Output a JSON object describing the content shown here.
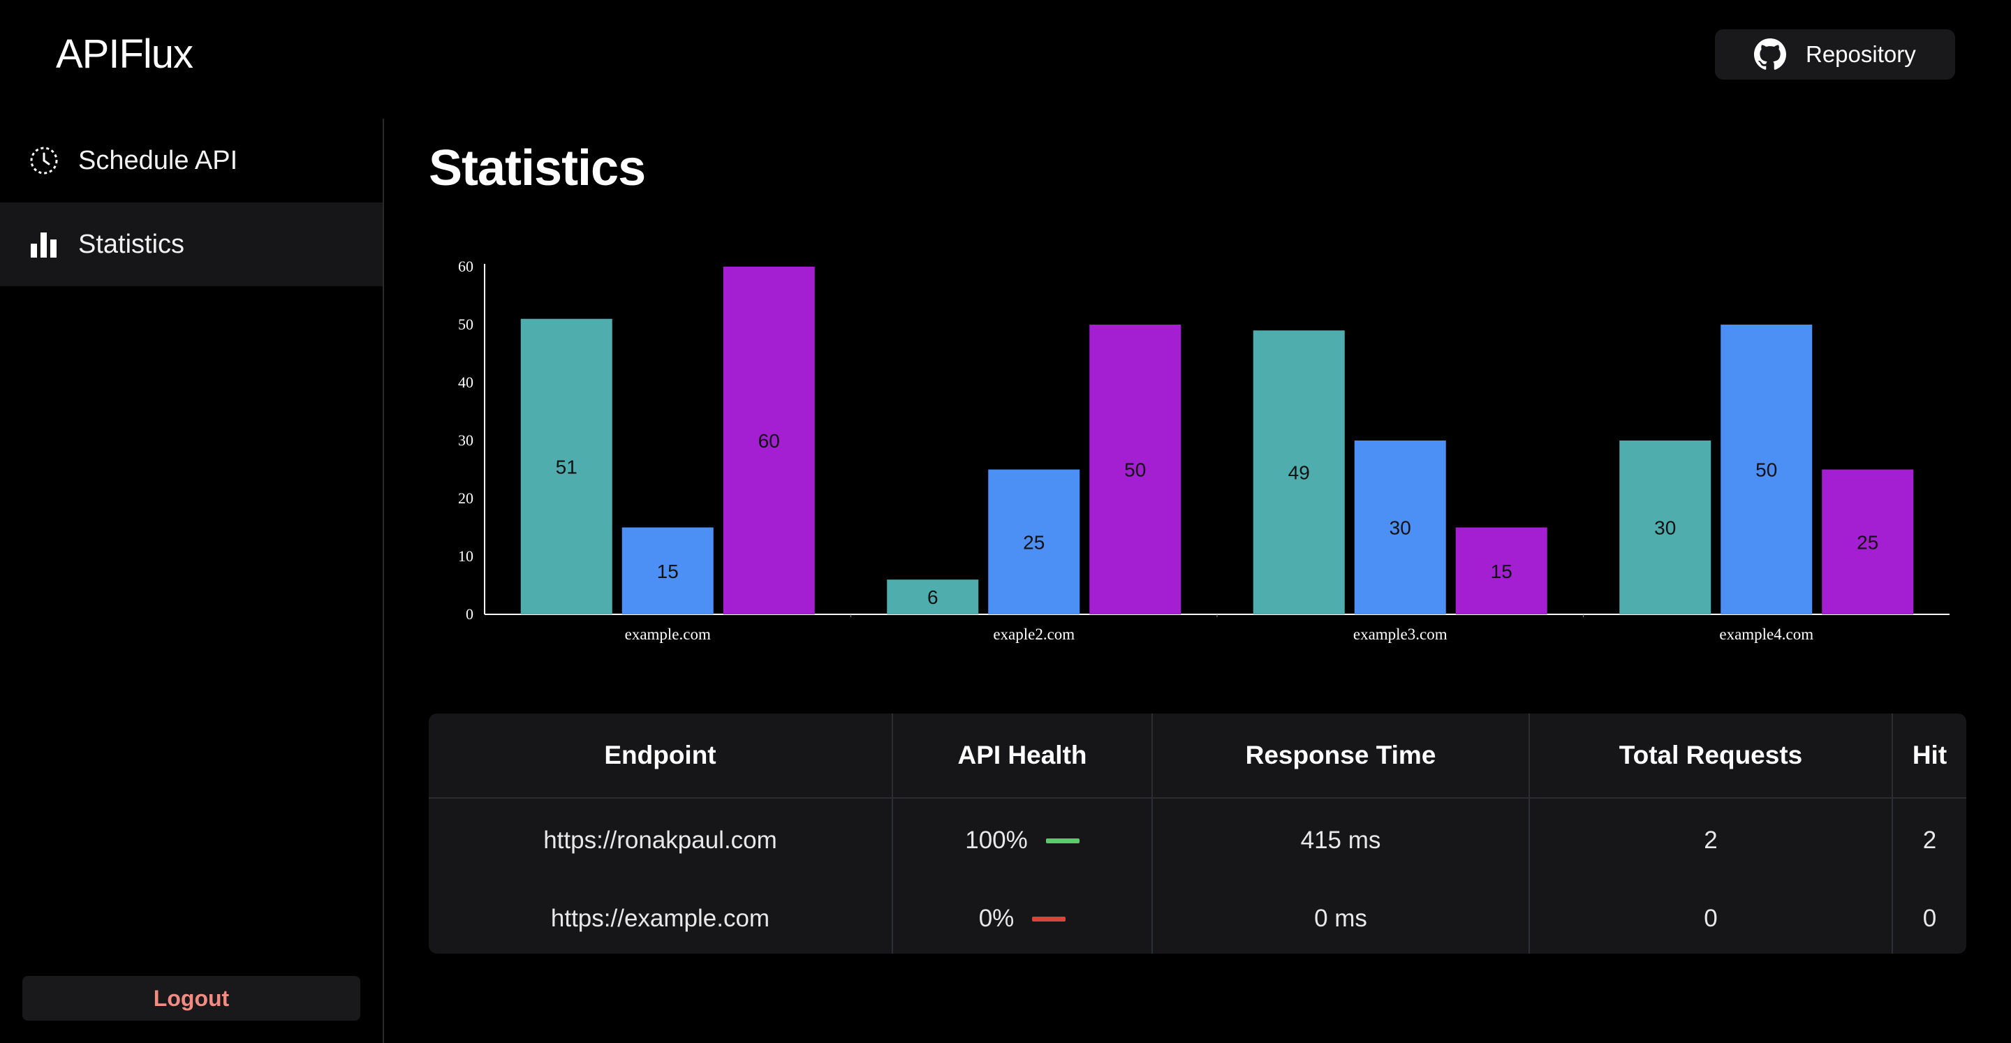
{
  "header": {
    "brand": "APIFlux",
    "repo_button_label": "Repository",
    "repo_icon": "github-icon"
  },
  "sidebar": {
    "items": [
      {
        "label": "Schedule API",
        "icon": "clock-icon",
        "active": false
      },
      {
        "label": "Statistics",
        "icon": "bar-chart-icon",
        "active": true
      }
    ],
    "logout_label": "Logout"
  },
  "main": {
    "title": "Statistics"
  },
  "chart_data": {
    "type": "bar",
    "categories": [
      "example.com",
      "exaple2.com",
      "example3.com",
      "example4.com"
    ],
    "series": [
      {
        "color": "#4fadad",
        "values": [
          51,
          6,
          49,
          30
        ]
      },
      {
        "color": "#4c8ff5",
        "values": [
          15,
          25,
          30,
          50
        ]
      },
      {
        "color": "#a31fd1",
        "values": [
          60,
          50,
          15,
          25
        ]
      }
    ],
    "yticks": [
      "0",
      "10",
      "20",
      "30",
      "40",
      "50",
      "60"
    ],
    "ylim": [
      0,
      60
    ],
    "title": "",
    "xlabel": "",
    "ylabel": "",
    "grid": false
  },
  "table": {
    "headers": [
      "Endpoint",
      "API Health",
      "Response Time",
      "Total Requests",
      "Hit"
    ],
    "rows": [
      {
        "endpoint": "https://ronakpaul.com",
        "health": "100%",
        "health_color": "#5cc96a",
        "response_time": "415 ms",
        "total_requests": "2",
        "hit": "2"
      },
      {
        "endpoint": "https://example.com",
        "health": "0%",
        "health_color": "#d9453b",
        "response_time": "0 ms",
        "total_requests": "0",
        "hit": "0"
      }
    ]
  },
  "colors": {
    "background": "#000000",
    "panel": "#161618",
    "logout_text": "#f28b82"
  }
}
